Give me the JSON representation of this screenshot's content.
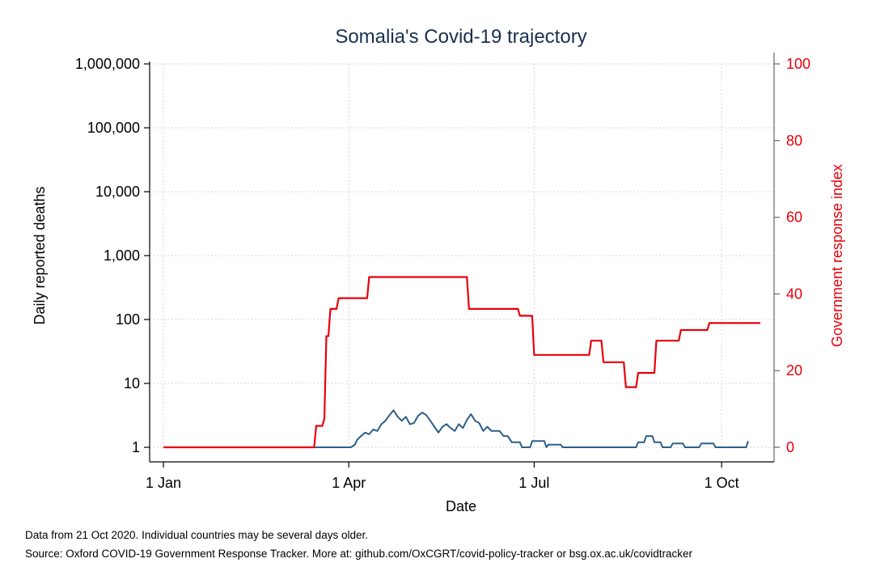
{
  "chart_data": {
    "type": "line",
    "title": "Somalia's Covid-19 trajectory",
    "xlabel": "Date",
    "ylabel_left": "Daily reported deaths",
    "ylabel_right": "Government response index",
    "x_ticks": [
      {
        "date": "2020-01-01",
        "label": "1 Jan"
      },
      {
        "date": "2020-04-01",
        "label": "1 Apr"
      },
      {
        "date": "2020-07-01",
        "label": "1 Jul"
      },
      {
        "date": "2020-10-01",
        "label": "1 Oct"
      }
    ],
    "y_left": {
      "scale": "log",
      "range": [
        1,
        1000000
      ],
      "ticks": [
        {
          "value": 1,
          "label": "1"
        },
        {
          "value": 10,
          "label": "10"
        },
        {
          "value": 100,
          "label": "100"
        },
        {
          "value": 1000,
          "label": "1,000"
        },
        {
          "value": 10000,
          "label": "10,000"
        },
        {
          "value": 100000,
          "label": "100,000"
        },
        {
          "value": 1000000,
          "label": "1,000,000"
        }
      ]
    },
    "y_right": {
      "scale": "linear",
      "range": [
        0,
        100
      ],
      "ticks": [
        {
          "value": 0,
          "label": "0"
        },
        {
          "value": 20,
          "label": "20"
        },
        {
          "value": 40,
          "label": "40"
        },
        {
          "value": 60,
          "label": "60"
        },
        {
          "value": 80,
          "label": "80"
        },
        {
          "value": 100,
          "label": "100"
        }
      ]
    },
    "grid": true,
    "colors": {
      "deaths": "#2c5f8a",
      "response": "#e8000b",
      "title": "#1a2f4f",
      "right_axis": "#e8000b"
    },
    "series": [
      {
        "axis": "left",
        "points": [
          [
            "2020-01-01",
            1
          ],
          [
            "2020-04-02",
            1
          ],
          [
            "2020-04-04",
            1.1
          ],
          [
            "2020-04-05",
            1.3
          ],
          [
            "2020-04-07",
            1.5
          ],
          [
            "2020-04-09",
            1.7
          ],
          [
            "2020-04-11",
            1.6
          ],
          [
            "2020-04-13",
            1.9
          ],
          [
            "2020-04-15",
            1.8
          ],
          [
            "2020-04-17",
            2.3
          ],
          [
            "2020-04-19",
            2.6
          ],
          [
            "2020-04-21",
            3.2
          ],
          [
            "2020-04-23",
            3.8
          ],
          [
            "2020-04-25",
            3.0
          ],
          [
            "2020-04-27",
            2.6
          ],
          [
            "2020-04-29",
            3.0
          ],
          [
            "2020-05-01",
            2.3
          ],
          [
            "2020-05-03",
            2.4
          ],
          [
            "2020-05-05",
            3.1
          ],
          [
            "2020-05-07",
            3.5
          ],
          [
            "2020-05-09",
            3.2
          ],
          [
            "2020-05-11",
            2.6
          ],
          [
            "2020-05-13",
            2.1
          ],
          [
            "2020-05-15",
            1.7
          ],
          [
            "2020-05-17",
            2.1
          ],
          [
            "2020-05-19",
            2.3
          ],
          [
            "2020-05-21",
            2.0
          ],
          [
            "2020-05-23",
            1.8
          ],
          [
            "2020-05-25",
            2.3
          ],
          [
            "2020-05-27",
            2.0
          ],
          [
            "2020-05-29",
            2.7
          ],
          [
            "2020-05-31",
            3.3
          ],
          [
            "2020-06-02",
            2.6
          ],
          [
            "2020-06-04",
            2.4
          ],
          [
            "2020-06-06",
            1.8
          ],
          [
            "2020-06-08",
            2.1
          ],
          [
            "2020-06-10",
            1.8
          ],
          [
            "2020-06-14",
            1.8
          ],
          [
            "2020-06-16",
            1.5
          ],
          [
            "2020-06-18",
            1.5
          ],
          [
            "2020-06-20",
            1.2
          ],
          [
            "2020-06-24",
            1.2
          ],
          [
            "2020-06-25",
            1.0
          ],
          [
            "2020-06-29",
            1.0
          ],
          [
            "2020-06-30",
            1.25
          ],
          [
            "2020-07-06",
            1.25
          ],
          [
            "2020-07-07",
            1.0
          ],
          [
            "2020-07-08",
            1.1
          ],
          [
            "2020-07-14",
            1.1
          ],
          [
            "2020-07-15",
            1.0
          ],
          [
            "2020-08-20",
            1.0
          ],
          [
            "2020-08-21",
            1.2
          ],
          [
            "2020-08-24",
            1.2
          ],
          [
            "2020-08-25",
            1.5
          ],
          [
            "2020-08-28",
            1.5
          ],
          [
            "2020-08-29",
            1.2
          ],
          [
            "2020-09-01",
            1.2
          ],
          [
            "2020-09-02",
            1.0
          ],
          [
            "2020-09-06",
            1.0
          ],
          [
            "2020-09-07",
            1.15
          ],
          [
            "2020-09-12",
            1.15
          ],
          [
            "2020-09-13",
            1.0
          ],
          [
            "2020-09-20",
            1.0
          ],
          [
            "2020-09-21",
            1.15
          ],
          [
            "2020-09-27",
            1.15
          ],
          [
            "2020-09-28",
            1.0
          ],
          [
            "2020-10-13",
            1.0
          ],
          [
            "2020-10-14",
            1.25
          ]
        ]
      },
      {
        "axis": "right",
        "points": [
          [
            "2020-01-01",
            0
          ],
          [
            "2020-03-15",
            0
          ],
          [
            "2020-03-16",
            5.6
          ],
          [
            "2020-03-19",
            5.6
          ],
          [
            "2020-03-20",
            7.4
          ],
          [
            "2020-03-21",
            29
          ],
          [
            "2020-03-22",
            29
          ],
          [
            "2020-03-23",
            36.1
          ],
          [
            "2020-03-26",
            36.1
          ],
          [
            "2020-03-27",
            38.9
          ],
          [
            "2020-04-10",
            38.9
          ],
          [
            "2020-04-11",
            44.4
          ],
          [
            "2020-05-29",
            44.4
          ],
          [
            "2020-05-30",
            36.1
          ],
          [
            "2020-06-23",
            36.1
          ],
          [
            "2020-06-24",
            34.3
          ],
          [
            "2020-06-30",
            34.3
          ],
          [
            "2020-07-01",
            24.1
          ],
          [
            "2020-07-28",
            24.1
          ],
          [
            "2020-07-29",
            27.8
          ],
          [
            "2020-08-03",
            27.8
          ],
          [
            "2020-08-04",
            22.2
          ],
          [
            "2020-08-14",
            22.2
          ],
          [
            "2020-08-15",
            15.7
          ],
          [
            "2020-08-20",
            15.7
          ],
          [
            "2020-08-21",
            19.4
          ],
          [
            "2020-08-29",
            19.4
          ],
          [
            "2020-08-30",
            27.8
          ],
          [
            "2020-09-10",
            27.8
          ],
          [
            "2020-09-11",
            30.6
          ],
          [
            "2020-09-24",
            30.6
          ],
          [
            "2020-09-25",
            32.4
          ],
          [
            "2020-10-20",
            32.4
          ]
        ]
      }
    ]
  },
  "footnotes": {
    "data_note": "Data from 21 Oct 2020. Individual countries may be several days older.",
    "source": "Source: Oxford COVID-19 Government Response Tracker. More at: github.com/OxCGRT/covid-policy-tracker or bsg.ox.ac.uk/covidtracker"
  }
}
